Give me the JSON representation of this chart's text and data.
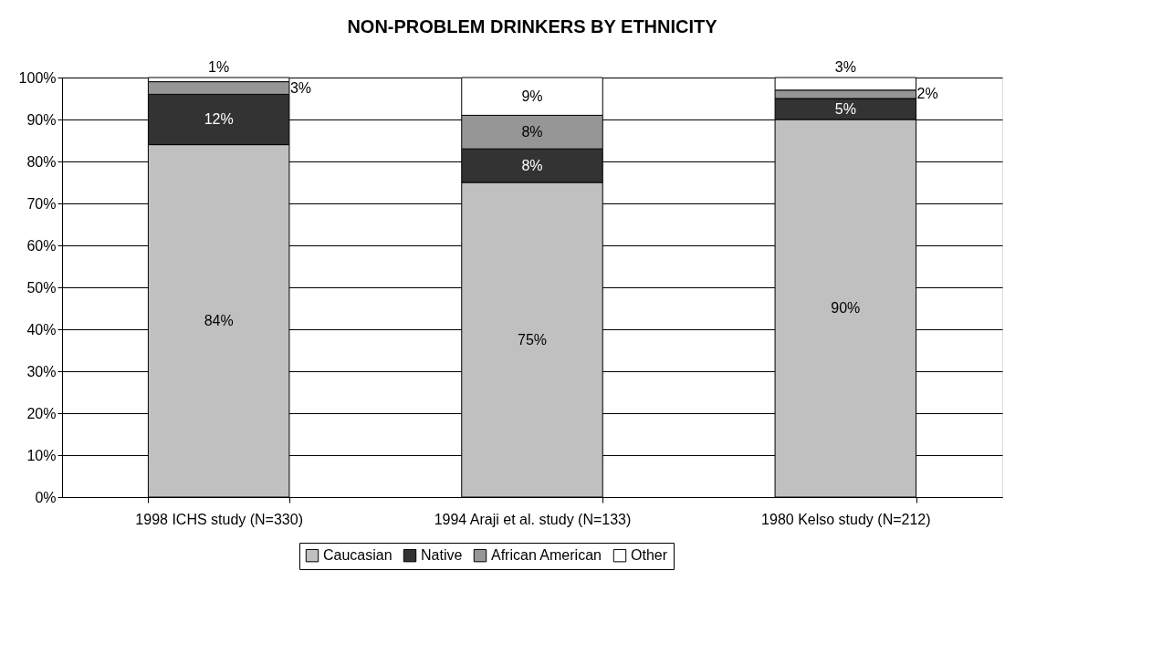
{
  "chart_data": {
    "type": "bar",
    "stacked": true,
    "title": "NON-PROBLEM DRINKERS BY ETHNICITY",
    "categories": [
      "1998 ICHS study (N=330)",
      "1994 Araji et al. study (N=133)",
      "1980 Kelso study (N=212)"
    ],
    "series": [
      {
        "name": "Caucasian",
        "color": "#c0c0c0",
        "values": [
          84,
          75,
          90
        ],
        "value_labels": [
          "84%",
          "75%",
          "90%"
        ]
      },
      {
        "name": "Native",
        "color": "#333333",
        "values": [
          12,
          8,
          5
        ],
        "value_labels": [
          "12%",
          "8%",
          "5%"
        ]
      },
      {
        "name": "African American",
        "color": "#969696",
        "values": [
          3,
          8,
          2
        ],
        "value_labels": [
          "3%",
          "8%",
          "2%"
        ]
      },
      {
        "name": "Other",
        "color": "#ffffff",
        "values": [
          1,
          9,
          3
        ],
        "value_labels": [
          "1%",
          "9%",
          "3%"
        ]
      }
    ],
    "ylim": [
      0,
      100
    ],
    "yticks": [
      {
        "value": 0,
        "label": "0%"
      },
      {
        "value": 10,
        "label": "10%"
      },
      {
        "value": 20,
        "label": "20%"
      },
      {
        "value": 30,
        "label": "30%"
      },
      {
        "value": 40,
        "label": "40%"
      },
      {
        "value": 50,
        "label": "50%"
      },
      {
        "value": 60,
        "label": "60%"
      },
      {
        "value": 70,
        "label": "70%"
      },
      {
        "value": 80,
        "label": "80%"
      },
      {
        "value": 90,
        "label": "90%"
      },
      {
        "value": 100,
        "label": "100%"
      }
    ],
    "grid": "y",
    "legend": "bottom"
  }
}
